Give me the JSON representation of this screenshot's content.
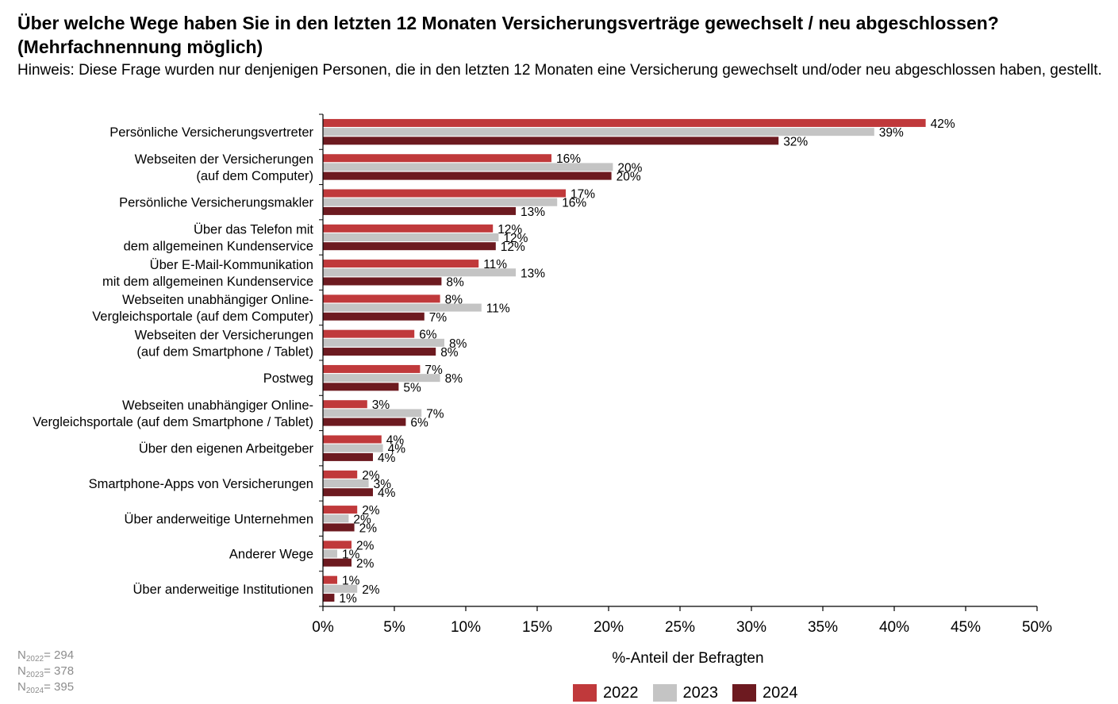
{
  "title": "Über welche Wege haben Sie in den letzten 12 Monaten Versicherungsverträge gewechselt / neu abgeschlossen? (Mehrfachnennung möglich)",
  "subtitle": "Hinweis: Diese Frage wurden nur denjenigen Personen, die in den letzten 12 Monaten eine Versicherung gewechselt und/oder neu abgeschlossen haben, gestellt.",
  "sample_sizes": [
    {
      "sub": "2022",
      "value": "= 294"
    },
    {
      "sub": "2023",
      "value": "= 378"
    },
    {
      "sub": "2024",
      "value": "= 395"
    }
  ],
  "colors": {
    "2022": "#c0393b",
    "2023": "#c4c4c4",
    "2024": "#6d1a20"
  },
  "chart_data": {
    "type": "bar",
    "orientation": "horizontal",
    "categories": [
      [
        "Persönliche Versicherungsvertreter"
      ],
      [
        "Webseiten der Versicherungen",
        "(auf dem Computer)"
      ],
      [
        "Persönliche Versicherungsmakler"
      ],
      [
        "Über das Telefon mit",
        "dem allgemeinen Kundenservice"
      ],
      [
        "Über E-Mail-Kommunikation",
        "mit dem allgemeinen Kundenservice"
      ],
      [
        "Webseiten unabhängiger Online-",
        "Vergleichsportale (auf dem Computer)"
      ],
      [
        "Webseiten der Versicherungen",
        "(auf dem Smartphone / Tablet)"
      ],
      [
        "Postweg"
      ],
      [
        "Webseiten unabhängiger Online-",
        "Vergleichsportale (auf dem Smartphone / Tablet)"
      ],
      [
        "Über den eigenen Arbeitgeber"
      ],
      [
        "Smartphone-Apps von Versicherungen"
      ],
      [
        "Über anderweitige Unternehmen"
      ],
      [
        "Anderer Wege"
      ],
      [
        "Über anderweitige Institutionen"
      ]
    ],
    "series": [
      {
        "name": "2022",
        "values": [
          42.2,
          16.0,
          17.0,
          11.9,
          10.9,
          8.2,
          6.4,
          6.8,
          3.1,
          4.1,
          2.4,
          2.4,
          2.0,
          1.0
        ],
        "labels": [
          "42%",
          "16%",
          "17%",
          "12%",
          "11%",
          "8%",
          "6%",
          "7%",
          "3%",
          "4%",
          "2%",
          "2%",
          "2%",
          "1%"
        ]
      },
      {
        "name": "2023",
        "values": [
          38.6,
          20.3,
          16.4,
          12.3,
          13.5,
          11.1,
          8.5,
          8.2,
          6.9,
          4.2,
          3.2,
          1.8,
          1.0,
          2.4
        ],
        "labels": [
          "39%",
          "20%",
          "16%",
          "12%",
          "13%",
          "11%",
          "8%",
          "8%",
          "7%",
          "4%",
          "3%",
          "2%",
          "1%",
          "2%"
        ]
      },
      {
        "name": "2024",
        "values": [
          31.9,
          20.2,
          13.5,
          12.1,
          8.3,
          7.1,
          7.9,
          5.3,
          5.8,
          3.5,
          3.5,
          2.2,
          2.0,
          0.8
        ],
        "labels": [
          "32%",
          "20%",
          "13%",
          "12%",
          "8%",
          "7%",
          "8%",
          "5%",
          "6%",
          "4%",
          "4%",
          "2%",
          "2%",
          "1%"
        ]
      }
    ],
    "xlim": [
      0,
      50
    ],
    "xticks": [
      0,
      5,
      10,
      15,
      20,
      25,
      30,
      35,
      40,
      45,
      50
    ],
    "xtick_labels": [
      "0%",
      "5%",
      "10%",
      "15%",
      "20%",
      "25%",
      "30%",
      "35%",
      "40%",
      "45%",
      "50%"
    ],
    "xlabel": "%-Anteil der Befragten",
    "grid": false,
    "legend": "bottom-center"
  }
}
